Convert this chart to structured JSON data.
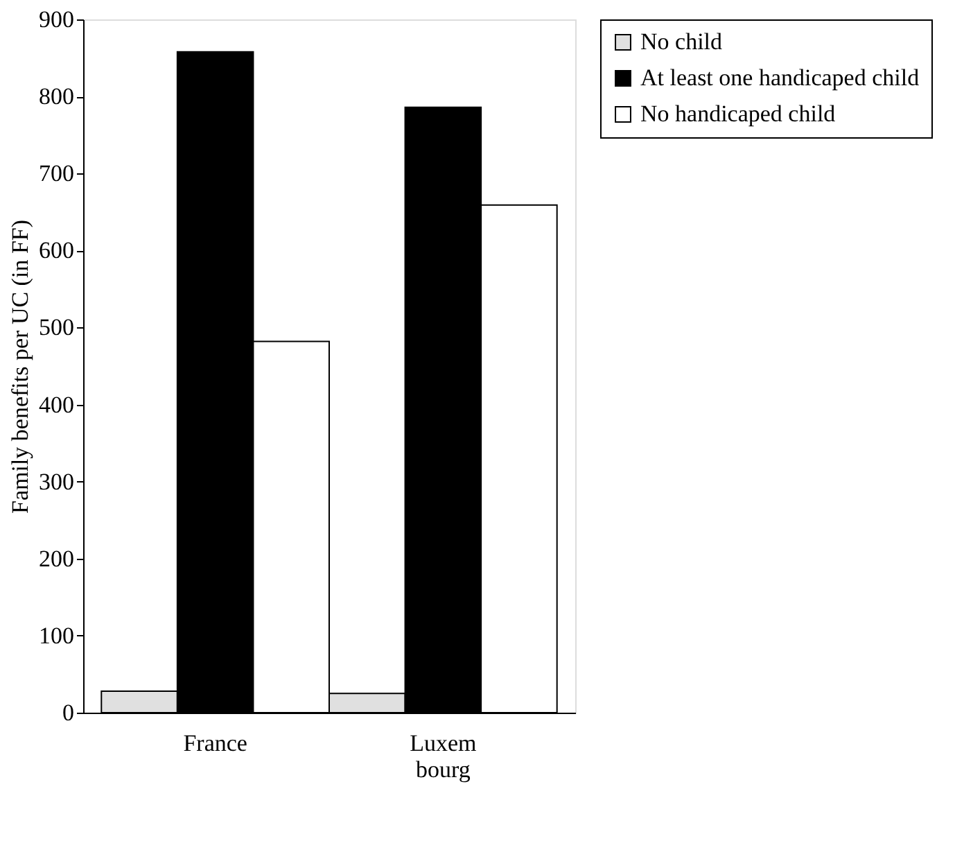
{
  "chart_data": {
    "type": "bar",
    "ylabel": "Family benefits per UC (in FF)",
    "categories": [
      "France",
      "Luxem bourg"
    ],
    "series": [
      {
        "name": "No child",
        "color": "#e0e0e0",
        "values": [
          28,
          25
        ]
      },
      {
        "name": "At least one handicaped child",
        "color": "#000000",
        "values": [
          858,
          786
        ]
      },
      {
        "name": "No handicaped child",
        "color": "#ffffff",
        "values": [
          482,
          659
        ]
      }
    ],
    "ylim": [
      0,
      900
    ],
    "yticks": [
      0,
      100,
      200,
      300,
      400,
      500,
      600,
      700,
      800,
      900
    ],
    "grid": false,
    "legend": "right"
  }
}
